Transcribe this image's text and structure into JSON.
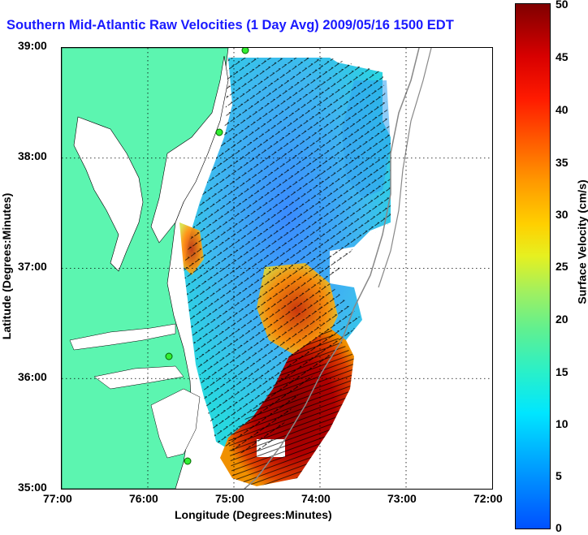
{
  "title": "Southern Mid-Atlantic Raw Velocities (1 Day Avg) 2009/05/16 1500 EDT",
  "xlabel": "Longitude (Degrees:Minutes)",
  "ylabel": "Latitude (Degrees:Minutes)",
  "x_ticks": [
    "77:00",
    "76:00",
    "75:00",
    "74:00",
    "73:00",
    "72:00"
  ],
  "y_ticks": [
    "39:00",
    "38:00",
    "37:00",
    "36:00",
    "35:00"
  ],
  "colorbar": {
    "label": "Surface Velocity (cm/s)",
    "ticks": [
      "50",
      "45",
      "40",
      "35",
      "30",
      "25",
      "20",
      "15",
      "10",
      "5",
      "0"
    ],
    "range": [
      0,
      50
    ]
  },
  "colors": {
    "land": "#5cf5b0",
    "water": "#ffffff",
    "title": "#1a1aff",
    "low_speed": "#0050ff",
    "high_speed": "#800000"
  }
}
